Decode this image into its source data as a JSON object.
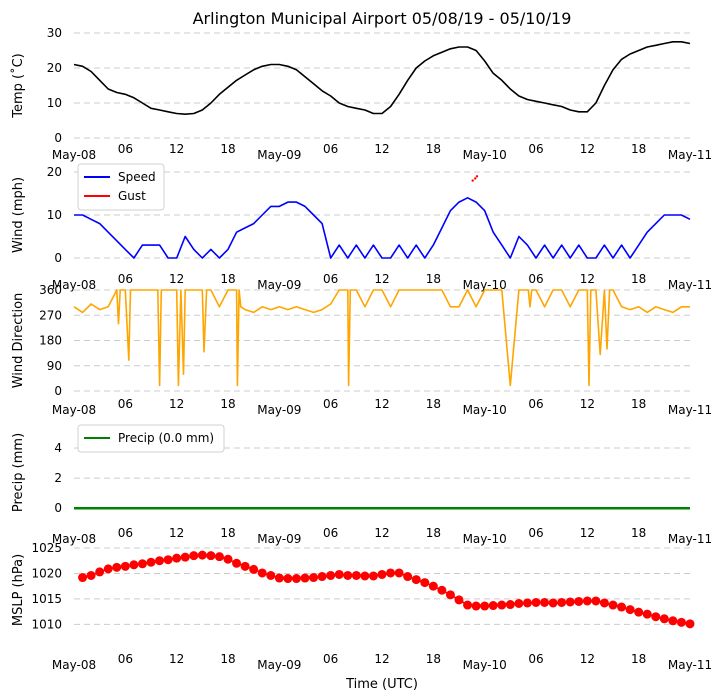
{
  "title": "Arlington Municipal Airport 05/08/19 - 05/10/19",
  "xlabel": "Time (UTC)",
  "x_ticks": [
    "May-08",
    "06",
    "12",
    "18",
    "May-09",
    "06",
    "12",
    "18",
    "May-10",
    "06",
    "12",
    "18",
    "May-11"
  ],
  "x_range_hours": [
    0,
    72
  ],
  "chart_data": [
    {
      "type": "line",
      "title": "Arlington Municipal Airport 05/08/19 - 05/10/19",
      "ylabel": "Temp ($^\\circ$C)",
      "ylabel_display": "Temp (˚C)",
      "ylim": [
        0,
        30
      ],
      "yticks": [
        "0",
        "10",
        "20",
        "30"
      ],
      "xlabel": "Time (UTC)",
      "series": [
        {
          "name": "Temp",
          "color": "#000000",
          "x": [
            0,
            1,
            2,
            3,
            4,
            5,
            6,
            7,
            8,
            9,
            10,
            11,
            12,
            13,
            14,
            15,
            16,
            17,
            18,
            19,
            20,
            21,
            22,
            23,
            24,
            25,
            26,
            27,
            28,
            29,
            30,
            31,
            32,
            33,
            34,
            35,
            36,
            37,
            38,
            39,
            40,
            41,
            42,
            43,
            44,
            45,
            46,
            47,
            48,
            49,
            50,
            51,
            52,
            53,
            54,
            55,
            56,
            57,
            58,
            59,
            60,
            61,
            62,
            63,
            64,
            65,
            66,
            67,
            68,
            69,
            70,
            71,
            72
          ],
          "values": [
            21,
            20.5,
            19,
            16.5,
            14,
            13,
            12.5,
            11.5,
            10,
            8.5,
            8,
            7.5,
            7,
            6.8,
            7,
            8,
            10,
            12.5,
            14.5,
            16.5,
            18,
            19.5,
            20.5,
            21,
            21,
            20.5,
            19.5,
            17.5,
            15.5,
            13.5,
            12,
            10,
            9,
            8.5,
            8,
            7,
            7,
            9,
            12.5,
            16.5,
            20,
            22,
            23.5,
            24.5,
            25.5,
            26,
            26,
            25,
            22,
            18.5,
            16.5,
            14,
            12,
            11,
            10.5,
            10,
            9.5,
            9,
            8,
            7.5,
            7.5,
            10,
            15,
            19.5,
            22.5,
            24,
            25,
            26,
            26.5,
            27,
            27.5,
            27.5,
            27
          ]
        }
      ]
    },
    {
      "type": "line",
      "ylabel": "Wind (mph)",
      "ylim": [
        0,
        20
      ],
      "yticks": [
        "0",
        "10",
        "20"
      ],
      "legend": [
        "Speed",
        "Gust"
      ],
      "legend_position": "upper-left",
      "series": [
        {
          "name": "Speed",
          "color": "#0000ff",
          "x": [
            0,
            1,
            2,
            3,
            4,
            5,
            6,
            7,
            8,
            9,
            10,
            11,
            12,
            13,
            14,
            15,
            16,
            17,
            18,
            19,
            20,
            21,
            22,
            23,
            24,
            25,
            26,
            27,
            28,
            29,
            30,
            31,
            32,
            33,
            34,
            35,
            36,
            37,
            38,
            39,
            40,
            41,
            42,
            43,
            44,
            45,
            46,
            47,
            48,
            49,
            50,
            51,
            52,
            53,
            54,
            55,
            56,
            57,
            58,
            59,
            60,
            61,
            62,
            63,
            64,
            65,
            66,
            67,
            68,
            69,
            70,
            71,
            72
          ],
          "values": [
            10,
            10,
            9,
            8,
            6,
            4,
            2,
            0,
            3,
            3,
            3,
            0,
            0,
            5,
            2,
            0,
            2,
            0,
            2,
            6,
            7,
            8,
            10,
            12,
            12,
            13,
            13,
            12,
            10,
            8,
            0,
            3,
            0,
            3,
            0,
            3,
            0,
            0,
            3,
            0,
            3,
            0,
            3,
            7,
            11,
            13,
            14,
            13,
            11,
            6,
            3,
            0,
            5,
            3,
            0,
            3,
            0,
            3,
            0,
            3,
            0,
            0,
            3,
            0,
            3,
            0,
            3,
            6,
            8,
            10,
            10,
            10,
            9
          ]
        },
        {
          "name": "Gust",
          "color": "#ff0000",
          "x": [
            46.6,
            46.9,
            47.1
          ],
          "values": [
            18,
            18.5,
            19
          ]
        }
      ]
    },
    {
      "type": "line",
      "ylabel": "Wind Direction",
      "ylim": [
        0,
        360
      ],
      "yticks": [
        "0",
        "90",
        "180",
        "270",
        "360"
      ],
      "series": [
        {
          "name": "Wind Direction",
          "color": "#ffa500",
          "x": [
            0,
            1,
            2,
            3,
            4,
            5,
            5.2,
            5.4,
            5.6,
            6,
            6.4,
            6.6,
            6.8,
            7,
            8,
            9,
            9.8,
            10,
            10.2,
            11,
            12,
            12.2,
            12.5,
            12.8,
            13,
            13.2,
            14,
            15,
            15.2,
            15.5,
            15.8,
            16,
            17,
            18,
            19,
            19.1,
            19.3,
            19.5,
            20,
            21,
            22,
            23,
            24,
            25,
            26,
            27,
            28,
            29,
            30,
            31,
            32,
            32.1,
            32.3,
            32.5,
            33,
            34,
            35,
            36,
            37,
            38,
            39,
            40,
            41,
            42,
            43,
            44,
            45,
            46,
            47,
            48,
            49,
            50,
            51,
            52,
            53,
            53.1,
            53.3,
            53.5,
            54,
            55,
            56,
            57,
            58,
            59,
            60,
            60.2,
            60.4,
            60.6,
            61,
            61.5,
            62,
            62.3,
            62.6,
            63,
            64,
            65,
            66,
            67,
            68,
            69,
            70,
            71,
            72
          ],
          "values": [
            300,
            280,
            310,
            290,
            300,
            360,
            240,
            360,
            360,
            360,
            110,
            360,
            360,
            360,
            360,
            360,
            360,
            20,
            360,
            360,
            360,
            20,
            360,
            60,
            360,
            360,
            360,
            360,
            140,
            360,
            360,
            360,
            300,
            360,
            360,
            20,
            360,
            300,
            290,
            280,
            300,
            290,
            300,
            290,
            300,
            290,
            280,
            290,
            310,
            360,
            360,
            20,
            360,
            360,
            360,
            300,
            360,
            360,
            300,
            360,
            360,
            360,
            360,
            360,
            360,
            300,
            300,
            360,
            300,
            360,
            360,
            360,
            20,
            360,
            360,
            360,
            300,
            360,
            360,
            300,
            360,
            360,
            300,
            360,
            360,
            20,
            360,
            360,
            360,
            130,
            360,
            150,
            360,
            360,
            300,
            290,
            300,
            280,
            300,
            290,
            280,
            300,
            300
          ]
        }
      ]
    },
    {
      "type": "line",
      "ylabel": "Precip (mm)",
      "ylim": [
        -0.25,
        5
      ],
      "yticks": [
        "0",
        "2",
        "4"
      ],
      "legend": [
        "Precip (0.0 mm)"
      ],
      "legend_position": "upper-left",
      "series": [
        {
          "name": "Precip (0.0 mm)",
          "color": "#008000",
          "x": [
            0,
            72
          ],
          "values": [
            0,
            0
          ]
        }
      ]
    },
    {
      "type": "line",
      "ylabel": "MSLP (hPa)",
      "ylim": [
        1008.5,
        1025
      ],
      "yticks": [
        "1010",
        "1015",
        "1020",
        "1025"
      ],
      "series": [
        {
          "name": "MSLP",
          "color": "#ff0000",
          "marker": "circle",
          "x": [
            1,
            2,
            3,
            4,
            5,
            6,
            7,
            8,
            9,
            10,
            11,
            12,
            13,
            14,
            15,
            16,
            17,
            18,
            19,
            20,
            21,
            22,
            23,
            24,
            25,
            26,
            27,
            28,
            29,
            30,
            31,
            32,
            33,
            34,
            35,
            36,
            37,
            38,
            39,
            40,
            41,
            42,
            43,
            44,
            45,
            46,
            47,
            48,
            49,
            50,
            51,
            52,
            53,
            54,
            55,
            56,
            57,
            58,
            59,
            60,
            61,
            62,
            63,
            64,
            65,
            66,
            67,
            68,
            69,
            70,
            71,
            72
          ],
          "values": [
            1019.2,
            1019.6,
            1020.3,
            1020.9,
            1021.2,
            1021.4,
            1021.7,
            1021.9,
            1022.2,
            1022.5,
            1022.7,
            1023.0,
            1023.2,
            1023.5,
            1023.6,
            1023.5,
            1023.3,
            1022.8,
            1022.0,
            1021.4,
            1020.8,
            1020.1,
            1019.6,
            1019.1,
            1019.0,
            1019.0,
            1019.1,
            1019.2,
            1019.4,
            1019.6,
            1019.8,
            1019.6,
            1019.6,
            1019.5,
            1019.5,
            1019.8,
            1020.1,
            1020.1,
            1019.4,
            1018.8,
            1018.2,
            1017.5,
            1016.7,
            1015.8,
            1014.8,
            1013.8,
            1013.6,
            1013.6,
            1013.7,
            1013.8,
            1013.9,
            1014.1,
            1014.2,
            1014.3,
            1014.3,
            1014.2,
            1014.3,
            1014.4,
            1014.5,
            1014.6,
            1014.6,
            1014.2,
            1013.8,
            1013.4,
            1012.9,
            1012.4,
            1012.0,
            1011.5,
            1011.1,
            1010.7,
            1010.4,
            1010.1
          ]
        }
      ]
    }
  ]
}
